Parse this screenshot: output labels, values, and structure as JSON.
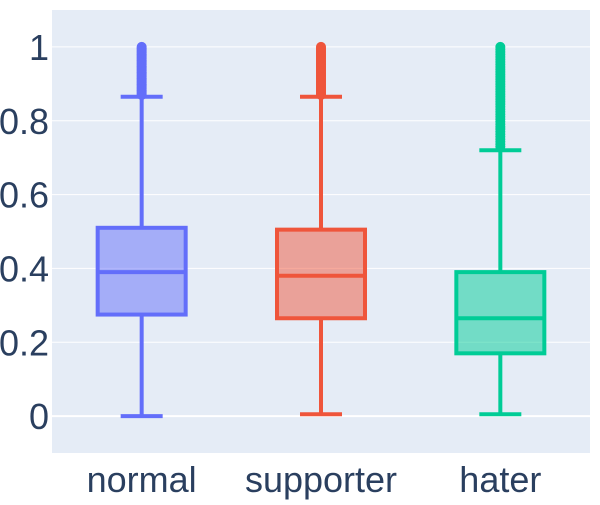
{
  "chart_data": {
    "type": "box",
    "title": "",
    "xlabel": "",
    "ylabel": "",
    "categories": [
      "normal",
      "supporter",
      "hater"
    ],
    "ylim": [
      -0.1,
      1.1
    ],
    "yticks": [
      0,
      0.2,
      0.4,
      0.6,
      0.8,
      1
    ],
    "ytick_labels": [
      "0",
      "0.2",
      "0.4",
      "0.6",
      "0.8",
      "1"
    ],
    "grid": true,
    "legend": "none",
    "series": [
      {
        "category": "normal",
        "color": "#636efa",
        "min": 0.0,
        "q1": 0.275,
        "median": 0.39,
        "q3": 0.51,
        "upper_fence": 0.865,
        "outlier_range": [
          0.87,
          1.0
        ]
      },
      {
        "category": "supporter",
        "color": "#ef553b",
        "min": 0.005,
        "q1": 0.265,
        "median": 0.38,
        "q3": 0.505,
        "upper_fence": 0.865,
        "outlier_range": [
          0.87,
          1.0
        ]
      },
      {
        "category": "hater",
        "color": "#00cc96",
        "min": 0.005,
        "q1": 0.17,
        "median": 0.265,
        "q3": 0.39,
        "upper_fence": 0.72,
        "outlier_range": [
          0.73,
          1.0
        ]
      }
    ],
    "colors": {
      "plot_bg": "#e5ecf6",
      "grid": "#ffffff",
      "text": "#2a3f5f"
    }
  }
}
